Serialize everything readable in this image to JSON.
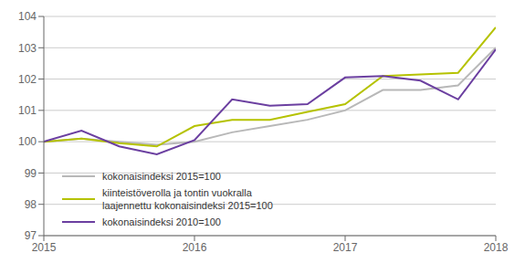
{
  "chart_data": {
    "type": "line",
    "x": [
      2015.0,
      2015.25,
      2015.5,
      2015.75,
      2016.0,
      2016.25,
      2016.5,
      2016.75,
      2017.0,
      2017.25,
      2017.5,
      2017.75,
      2018.0
    ],
    "xlim": [
      2015.0,
      2018.0
    ],
    "xticks": [
      2015,
      2016,
      2017,
      2018
    ],
    "ylim": [
      97,
      104
    ],
    "yticks": [
      97,
      98,
      99,
      100,
      101,
      102,
      103,
      104
    ],
    "grid": true,
    "legend": "lower left",
    "series": [
      {
        "name": "kokonaisindeksi 2015=100",
        "color": "#b8b8b8",
        "values": [
          100.0,
          100.1,
          100.0,
          99.9,
          100.0,
          100.3,
          100.5,
          100.7,
          101.0,
          101.65,
          101.65,
          101.8,
          103.0
        ]
      },
      {
        "name": "kiinteistöverolla ja tontin vuokralla\nlaajennettu kokonaisindeksi 2015=100",
        "color": "#b5c200",
        "values": [
          100.0,
          100.1,
          99.95,
          99.85,
          100.5,
          100.7,
          100.7,
          100.95,
          101.2,
          102.1,
          102.15,
          102.2,
          103.65
        ]
      },
      {
        "name": "kokonaisindeksi 2010=100",
        "color": "#6b3fa0",
        "values": [
          100.0,
          100.35,
          99.85,
          99.6,
          100.05,
          101.35,
          101.15,
          101.2,
          102.05,
          102.1,
          101.95,
          101.35,
          102.95
        ]
      }
    ]
  }
}
